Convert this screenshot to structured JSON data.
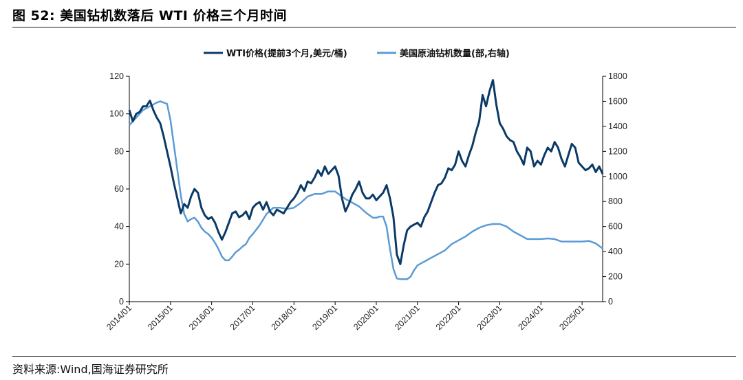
{
  "header": {
    "title": "图 52:  美国钻机数落后 WTI 价格三个月时间"
  },
  "footer": {
    "source": "资料来源:Wind,国海证券研究所"
  },
  "colors": {
    "wti": "#0b3a66",
    "rigs": "#5b9bd5",
    "axis": "#000000"
  },
  "chart_data": {
    "type": "line",
    "legend_position": "top",
    "grid": false,
    "x_labels": [
      "2014/01",
      "2015/01",
      "2016/01",
      "2017/01",
      "2018/01",
      "2019/01",
      "2020/01",
      "2021/01",
      "2022/01",
      "2023/01",
      "2024/01",
      "2025/01"
    ],
    "xlim": [
      "2014-01",
      "2025-07"
    ],
    "left_axis": {
      "ylim": [
        0,
        120
      ],
      "ticks": [
        0,
        20,
        40,
        60,
        80,
        100,
        120
      ]
    },
    "right_axis": {
      "ylim": [
        0,
        1800
      ],
      "ticks": [
        0,
        200,
        400,
        600,
        800,
        1000,
        1200,
        1400,
        1600,
        1800
      ]
    },
    "series": [
      {
        "name": "WTI价格(提前3个月,美元/桶)",
        "axis": "left",
        "color": "#0b3a66",
        "width": 3,
        "points": [
          [
            "2014-01",
            102
          ],
          [
            "2014-02",
            96
          ],
          [
            "2014-03",
            100
          ],
          [
            "2014-04",
            101
          ],
          [
            "2014-05",
            104
          ],
          [
            "2014-06",
            104
          ],
          [
            "2014-07",
            107
          ],
          [
            "2014-08",
            102
          ],
          [
            "2014-09",
            98
          ],
          [
            "2014-10",
            95
          ],
          [
            "2014-11",
            88
          ],
          [
            "2014-12",
            80
          ],
          [
            "2015-01",
            72
          ],
          [
            "2015-02",
            63
          ],
          [
            "2015-03",
            55
          ],
          [
            "2015-04",
            47
          ],
          [
            "2015-05",
            52
          ],
          [
            "2015-06",
            50
          ],
          [
            "2015-07",
            56
          ],
          [
            "2015-08",
            60
          ],
          [
            "2015-09",
            58
          ],
          [
            "2015-10",
            50
          ],
          [
            "2015-11",
            46
          ],
          [
            "2015-12",
            44
          ],
          [
            "2016-01",
            45
          ],
          [
            "2016-02",
            42
          ],
          [
            "2016-03",
            37
          ],
          [
            "2016-04",
            33
          ],
          [
            "2016-05",
            37
          ],
          [
            "2016-06",
            42
          ],
          [
            "2016-07",
            47
          ],
          [
            "2016-08",
            48
          ],
          [
            "2016-09",
            45
          ],
          [
            "2016-10",
            46
          ],
          [
            "2016-11",
            48
          ],
          [
            "2016-12",
            44
          ],
          [
            "2017-01",
            50
          ],
          [
            "2017-02",
            52
          ],
          [
            "2017-03",
            53
          ],
          [
            "2017-04",
            49
          ],
          [
            "2017-05",
            53
          ],
          [
            "2017-06",
            48
          ],
          [
            "2017-07",
            46
          ],
          [
            "2017-08",
            49
          ],
          [
            "2017-09",
            48
          ],
          [
            "2017-10",
            47
          ],
          [
            "2017-11",
            50
          ],
          [
            "2017-12",
            53
          ],
          [
            "2018-01",
            55
          ],
          [
            "2018-02",
            58
          ],
          [
            "2018-03",
            62
          ],
          [
            "2018-04",
            59
          ],
          [
            "2018-05",
            64
          ],
          [
            "2018-06",
            63
          ],
          [
            "2018-07",
            66
          ],
          [
            "2018-08",
            70
          ],
          [
            "2018-09",
            67
          ],
          [
            "2018-10",
            72
          ],
          [
            "2018-11",
            68
          ],
          [
            "2018-12",
            70
          ],
          [
            "2019-01",
            72
          ],
          [
            "2019-02",
            67
          ],
          [
            "2019-03",
            55
          ],
          [
            "2019-04",
            48
          ],
          [
            "2019-05",
            52
          ],
          [
            "2019-06",
            57
          ],
          [
            "2019-07",
            60
          ],
          [
            "2019-08",
            64
          ],
          [
            "2019-09",
            58
          ],
          [
            "2019-10",
            55
          ],
          [
            "2019-11",
            55
          ],
          [
            "2019-12",
            57
          ],
          [
            "2020-01",
            54
          ],
          [
            "2020-02",
            56
          ],
          [
            "2020-03",
            58
          ],
          [
            "2020-04",
            62
          ],
          [
            "2020-05",
            55
          ],
          [
            "2020-06",
            45
          ],
          [
            "2020-07",
            25
          ],
          [
            "2020-08",
            20
          ],
          [
            "2020-09",
            30
          ],
          [
            "2020-10",
            38
          ],
          [
            "2020-11",
            40
          ],
          [
            "2020-12",
            41
          ],
          [
            "2021-01",
            42
          ],
          [
            "2021-02",
            40
          ],
          [
            "2021-03",
            45
          ],
          [
            "2021-04",
            48
          ],
          [
            "2021-05",
            53
          ],
          [
            "2021-06",
            58
          ],
          [
            "2021-07",
            62
          ],
          [
            "2021-08",
            63
          ],
          [
            "2021-09",
            66
          ],
          [
            "2021-10",
            71
          ],
          [
            "2021-11",
            70
          ],
          [
            "2021-12",
            73
          ],
          [
            "2022-01",
            80
          ],
          [
            "2022-02",
            75
          ],
          [
            "2022-03",
            72
          ],
          [
            "2022-04",
            78
          ],
          [
            "2022-05",
            83
          ],
          [
            "2022-06",
            90
          ],
          [
            "2022-07",
            96
          ],
          [
            "2022-08",
            110
          ],
          [
            "2022-09",
            104
          ],
          [
            "2022-10",
            112
          ],
          [
            "2022-11",
            118
          ],
          [
            "2022-12",
            105
          ],
          [
            "2023-01",
            95
          ],
          [
            "2023-02",
            92
          ],
          [
            "2023-03",
            88
          ],
          [
            "2023-04",
            86
          ],
          [
            "2023-05",
            85
          ],
          [
            "2023-06",
            80
          ],
          [
            "2023-07",
            77
          ],
          [
            "2023-08",
            73
          ],
          [
            "2023-09",
            82
          ],
          [
            "2023-10",
            80
          ],
          [
            "2023-11",
            72
          ],
          [
            "2023-12",
            75
          ],
          [
            "2024-01",
            73
          ],
          [
            "2024-02",
            78
          ],
          [
            "2024-03",
            82
          ],
          [
            "2024-04",
            80
          ],
          [
            "2024-05",
            85
          ],
          [
            "2024-06",
            82
          ],
          [
            "2024-07",
            76
          ],
          [
            "2024-08",
            72
          ],
          [
            "2024-09",
            78
          ],
          [
            "2024-10",
            84
          ],
          [
            "2024-11",
            82
          ],
          [
            "2024-12",
            74
          ],
          [
            "2025-01",
            72
          ],
          [
            "2025-02",
            70
          ],
          [
            "2025-03",
            71
          ],
          [
            "2025-04",
            73
          ],
          [
            "2025-05",
            69
          ],
          [
            "2025-06",
            72
          ],
          [
            "2025-07",
            68
          ]
        ]
      },
      {
        "name": "美国原油钻机数量(部,右轴)",
        "axis": "right",
        "color": "#5b9bd5",
        "width": 2.5,
        "points": [
          [
            "2014-01",
            1410
          ],
          [
            "2014-03",
            1470
          ],
          [
            "2014-05",
            1530
          ],
          [
            "2014-07",
            1560
          ],
          [
            "2014-09",
            1590
          ],
          [
            "2014-10",
            1600
          ],
          [
            "2014-12",
            1580
          ],
          [
            "2015-01",
            1450
          ],
          [
            "2015-02",
            1250
          ],
          [
            "2015-03",
            1050
          ],
          [
            "2015-04",
            850
          ],
          [
            "2015-05",
            700
          ],
          [
            "2015-06",
            640
          ],
          [
            "2015-07",
            660
          ],
          [
            "2015-08",
            670
          ],
          [
            "2015-09",
            640
          ],
          [
            "2015-10",
            590
          ],
          [
            "2015-11",
            560
          ],
          [
            "2015-12",
            540
          ],
          [
            "2016-01",
            510
          ],
          [
            "2016-02",
            470
          ],
          [
            "2016-03",
            420
          ],
          [
            "2016-04",
            360
          ],
          [
            "2016-05",
            330
          ],
          [
            "2016-06",
            330
          ],
          [
            "2016-07",
            360
          ],
          [
            "2016-08",
            395
          ],
          [
            "2016-09",
            415
          ],
          [
            "2016-10",
            440
          ],
          [
            "2016-11",
            460
          ],
          [
            "2016-12",
            510
          ],
          [
            "2017-01",
            540
          ],
          [
            "2017-03",
            610
          ],
          [
            "2017-05",
            700
          ],
          [
            "2017-07",
            750
          ],
          [
            "2017-09",
            750
          ],
          [
            "2017-11",
            740
          ],
          [
            "2018-01",
            750
          ],
          [
            "2018-03",
            790
          ],
          [
            "2018-05",
            840
          ],
          [
            "2018-07",
            860
          ],
          [
            "2018-09",
            860
          ],
          [
            "2018-11",
            880
          ],
          [
            "2019-01",
            880
          ],
          [
            "2019-02",
            860
          ],
          [
            "2019-04",
            820
          ],
          [
            "2019-06",
            790
          ],
          [
            "2019-08",
            760
          ],
          [
            "2019-10",
            710
          ],
          [
            "2019-12",
            670
          ],
          [
            "2020-01",
            670
          ],
          [
            "2020-02",
            680
          ],
          [
            "2020-03",
            680
          ],
          [
            "2020-04",
            600
          ],
          [
            "2020-05",
            420
          ],
          [
            "2020-06",
            260
          ],
          [
            "2020-07",
            185
          ],
          [
            "2020-08",
            180
          ],
          [
            "2020-09",
            180
          ],
          [
            "2020-10",
            180
          ],
          [
            "2020-11",
            200
          ],
          [
            "2020-12",
            250
          ],
          [
            "2021-01",
            290
          ],
          [
            "2021-03",
            320
          ],
          [
            "2021-05",
            350
          ],
          [
            "2021-07",
            380
          ],
          [
            "2021-09",
            410
          ],
          [
            "2021-11",
            460
          ],
          [
            "2022-01",
            490
          ],
          [
            "2022-03",
            520
          ],
          [
            "2022-05",
            560
          ],
          [
            "2022-07",
            590
          ],
          [
            "2022-09",
            610
          ],
          [
            "2022-11",
            620
          ],
          [
            "2023-01",
            620
          ],
          [
            "2023-03",
            600
          ],
          [
            "2023-05",
            560
          ],
          [
            "2023-07",
            530
          ],
          [
            "2023-09",
            500
          ],
          [
            "2023-11",
            500
          ],
          [
            "2024-01",
            500
          ],
          [
            "2024-03",
            505
          ],
          [
            "2024-05",
            500
          ],
          [
            "2024-07",
            480
          ],
          [
            "2024-09",
            480
          ],
          [
            "2024-11",
            480
          ],
          [
            "2025-01",
            480
          ],
          [
            "2025-03",
            485
          ],
          [
            "2025-05",
            465
          ],
          [
            "2025-07",
            425
          ]
        ]
      }
    ]
  }
}
